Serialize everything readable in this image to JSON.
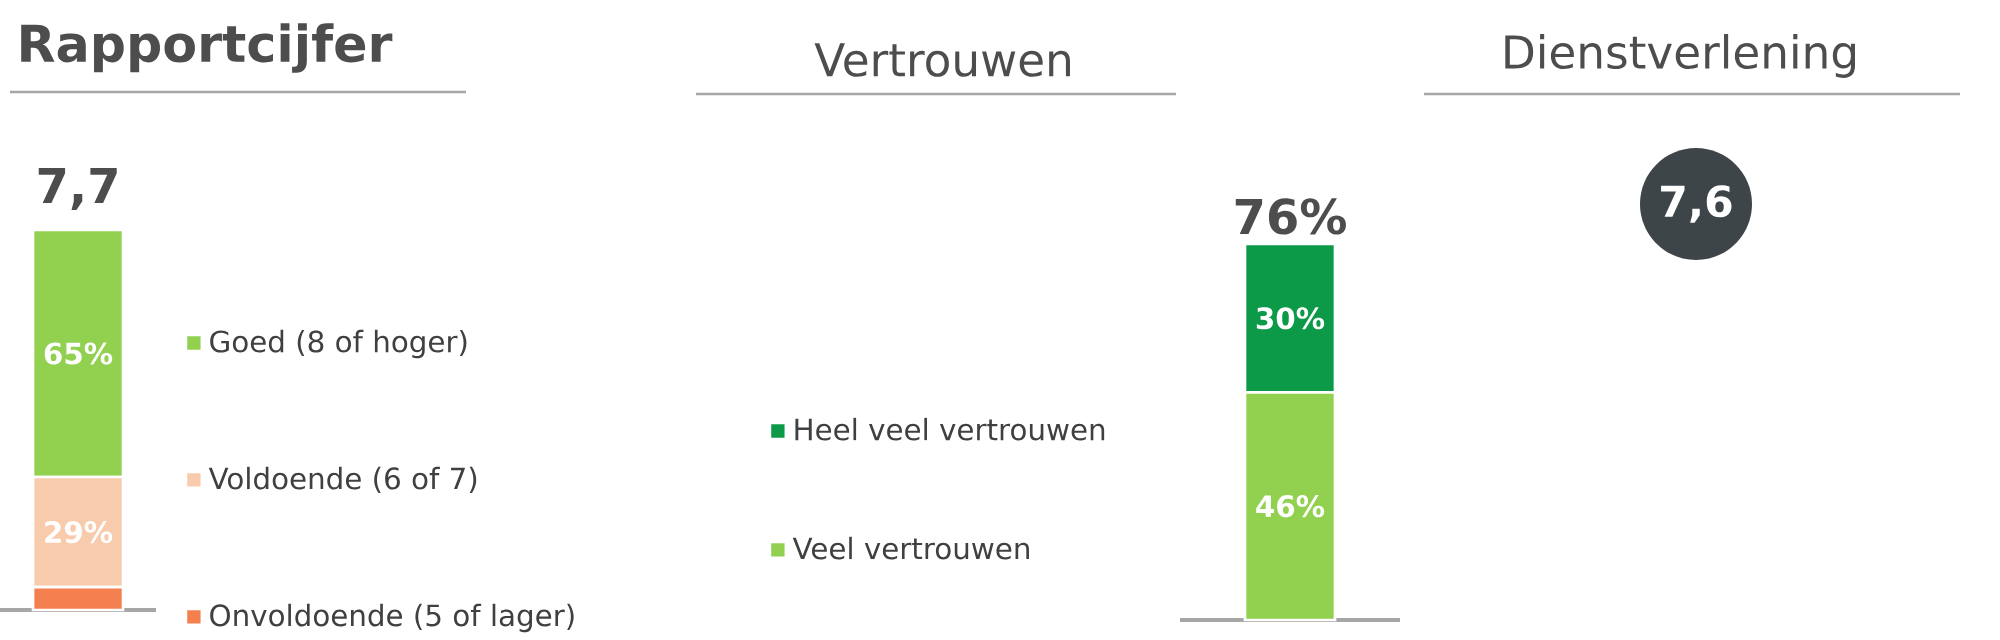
{
  "chart_data": [
    {
      "type": "bar",
      "title": "Rapportcijfer",
      "categories": [
        null
      ],
      "stacked": true,
      "legend": "right",
      "annotations": [
        "7,7"
      ],
      "series": [
        {
          "name": "Onvoldoende (5 of lager)",
          "color": "#f4804f",
          "values": [
            6
          ],
          "value_labels": [
            null
          ]
        },
        {
          "name": "Voldoende (6 of 7)",
          "color": "#f8cbad",
          "values": [
            29
          ],
          "value_labels": [
            "29%"
          ]
        },
        {
          "name": "Goed (8 of hoger)",
          "color": "#92d050",
          "values": [
            65
          ],
          "value_labels": [
            "65%"
          ]
        }
      ]
    },
    {
      "type": "bar",
      "title": "Vertrouwen",
      "categories": [
        null
      ],
      "stacked": true,
      "legend": "left",
      "totals": [
        "76%"
      ],
      "series": [
        {
          "name": "Veel vertrouwen",
          "color": "#92d050",
          "values": [
            46
          ],
          "value_labels": [
            "46%"
          ]
        },
        {
          "name": "Heel veel vertrouwen",
          "color": "#0c9a48",
          "values": [
            30
          ],
          "value_labels": [
            "30%"
          ]
        }
      ]
    },
    {
      "type": "other",
      "title": "Dienstverlening",
      "annotations": [
        "7,6"
      ]
    }
  ]
}
